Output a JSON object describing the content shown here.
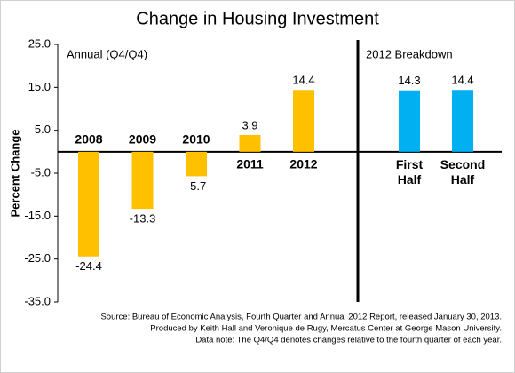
{
  "chart_data": {
    "type": "bar",
    "title": "Change in Housing Investment",
    "y_label": "Percent Change",
    "ylim": [
      -35,
      25
    ],
    "yticks": [
      {
        "value": 25,
        "label": "25.0"
      },
      {
        "value": 15,
        "label": "15.0"
      },
      {
        "value": 5,
        "label": "5.0"
      },
      {
        "value": -5,
        "label": "-5.0"
      },
      {
        "value": -15,
        "label": "-15.0"
      },
      {
        "value": -25,
        "label": "-25.0"
      },
      {
        "value": -35,
        "label": "-35.0"
      }
    ],
    "groups": [
      {
        "label": "Annual (Q4/Q4)",
        "color": "#FFC000",
        "categories": [
          "2008",
          "2009",
          "2010",
          "2011",
          "2012"
        ],
        "values": [
          -24.4,
          -13.3,
          -5.7,
          3.9,
          14.4
        ]
      },
      {
        "label": "2012 Breakdown",
        "color": "#00B0F0",
        "categories": [
          "First Half",
          "Second Half"
        ],
        "values": [
          14.3,
          14.4
        ]
      }
    ],
    "notes": [
      "Source: Bureau of Economic Analysis, Fourth Quarter and Annual 2012 Report, released January 30, 2013.",
      "Produced by Keith Hall and Veronique de Rugy, Mercatus Center at George Mason University.",
      "Data note: The Q4/Q4 denotes changes relative to the fourth quarter of each year."
    ]
  }
}
